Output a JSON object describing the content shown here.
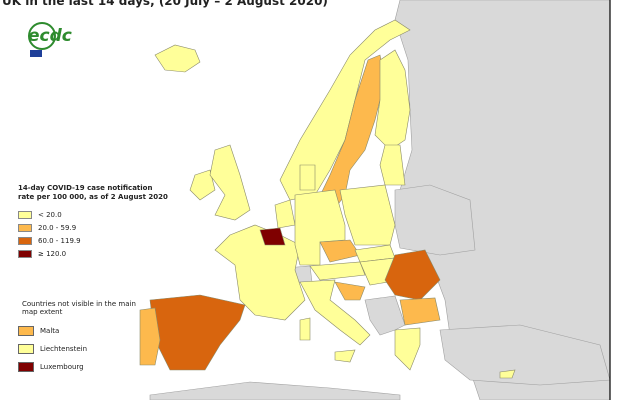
{
  "title": "UK in the last 14 days, (20 July – 2 August 2020)",
  "logo": "ecdc",
  "legend": {
    "title": "14-day COVID-19 case notification rate per 100 000, as of 2 August 2020",
    "items": [
      {
        "label": "< 20.0",
        "color": "#ffff99"
      },
      {
        "label": "20.0 - 59.9",
        "color": "#fdb94d"
      },
      {
        "label": "60.0 - 119.9",
        "color": "#d8650e"
      },
      {
        "label": "≥ 120.0",
        "color": "#7f0000"
      }
    ]
  },
  "inset": {
    "title": "Countries not visible in the main map extent",
    "items": [
      {
        "label": "Malta",
        "color": "#fdb94d"
      },
      {
        "label": "Liechtenstein",
        "color": "#ffff99"
      },
      {
        "label": "Luxembourg",
        "color": "#7f0000"
      }
    ]
  }
}
